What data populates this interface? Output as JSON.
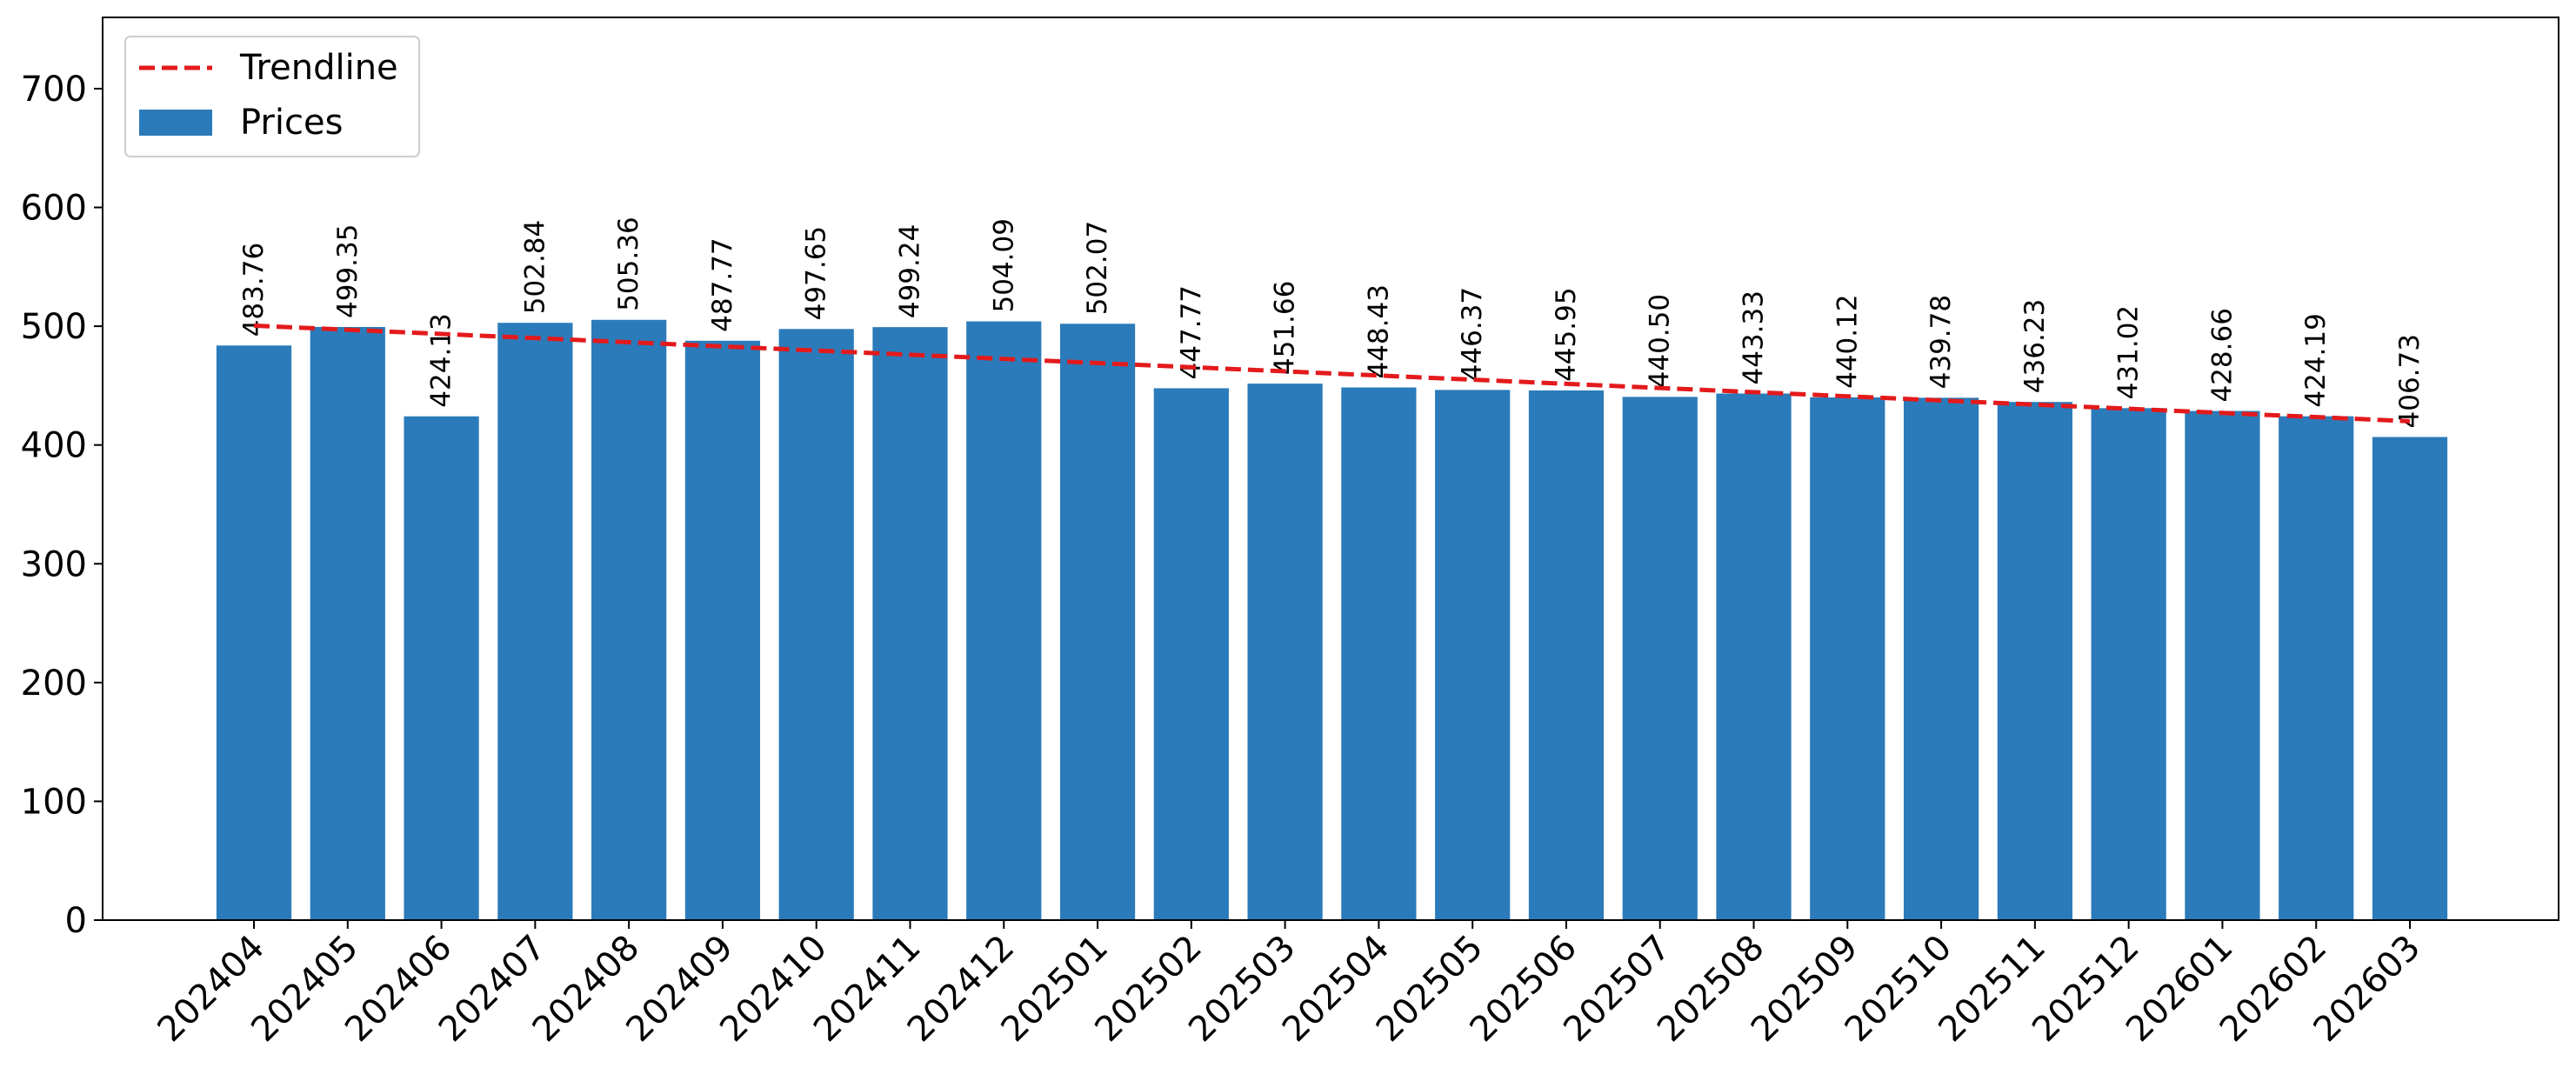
{
  "chart_data": {
    "type": "bar",
    "title": "",
    "xlabel": "",
    "ylabel": "",
    "categories": [
      "202404",
      "202405",
      "202406",
      "202407",
      "202408",
      "202409",
      "202410",
      "202411",
      "202412",
      "202501",
      "202502",
      "202503",
      "202504",
      "202505",
      "202506",
      "202507",
      "202508",
      "202509",
      "202510",
      "202511",
      "202512",
      "202601",
      "202602",
      "202603"
    ],
    "series": [
      {
        "name": "Prices",
        "values": [
          483.76,
          499.35,
          424.13,
          502.84,
          505.36,
          487.77,
          497.65,
          499.24,
          504.09,
          502.07,
          447.77,
          451.66,
          448.43,
          446.37,
          445.95,
          440.5,
          443.33,
          440.12,
          439.78,
          436.23,
          431.02,
          428.66,
          424.19,
          406.73
        ],
        "color": "#2b7bba"
      }
    ],
    "data_labels": [
      "483.76",
      "499.35",
      "424.13",
      "502.84",
      "505.36",
      "487.77",
      "497.65",
      "499.24",
      "504.09",
      "502.07",
      "447.77",
      "451.66",
      "448.43",
      "446.37",
      "445.95",
      "440.50",
      "443.33",
      "440.12",
      "439.78",
      "436.23",
      "431.02",
      "428.66",
      "424.19",
      "406.73"
    ],
    "trendline": {
      "name": "Trendline",
      "start": 500.5,
      "end": 420.0,
      "color": "#e31a1c",
      "style": "dashed"
    },
    "ylim": [
      0,
      760
    ],
    "yticks": [
      0,
      100,
      200,
      300,
      400,
      500,
      600,
      700
    ],
    "grid": false,
    "legend": {
      "position": "top-left",
      "entries": [
        "Trendline",
        "Prices"
      ]
    }
  }
}
